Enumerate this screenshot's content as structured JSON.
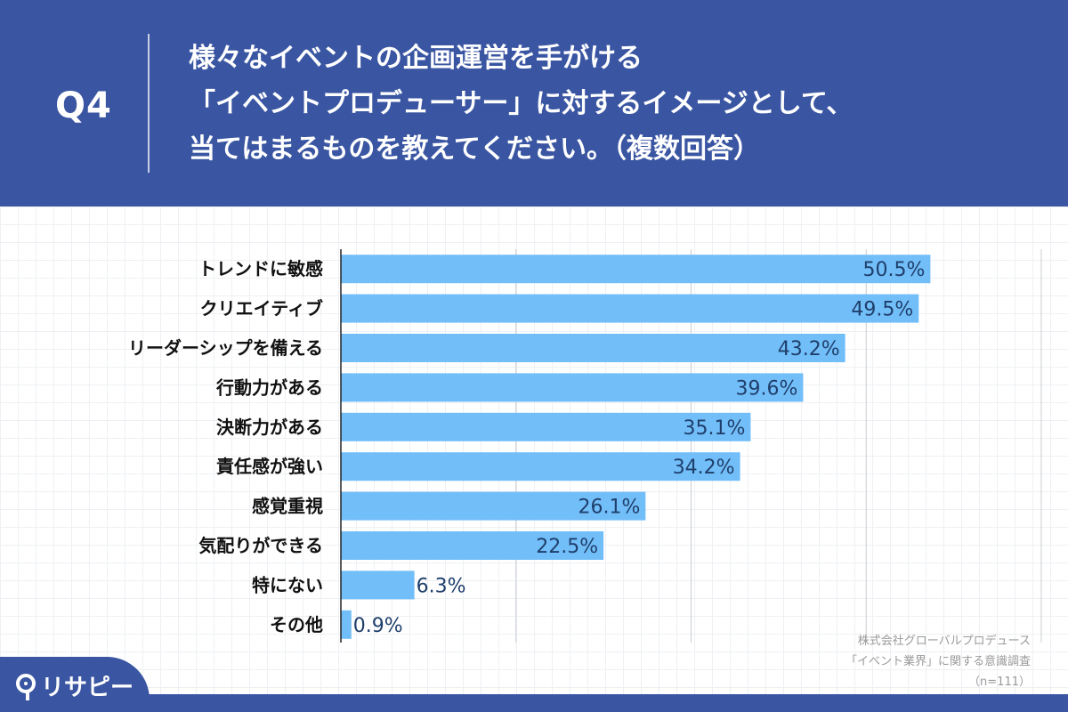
{
  "header": {
    "q_label": "Q4",
    "question_lines": [
      "様々なイベントの企画運営を手がける",
      "「イベントプロデューサー」に対するイメージとして、",
      "当てはまるものを教えてください。（複数回答）"
    ]
  },
  "chart_data": {
    "type": "bar",
    "orientation": "horizontal",
    "categories": [
      "トレンドに敏感",
      "クリエイティブ",
      "リーダーシップを備える",
      "行動力がある",
      "決断力がある",
      "責任感が強い",
      "感覚重視",
      "気配りができる",
      "特にない",
      "その他"
    ],
    "values": [
      50.5,
      49.5,
      43.2,
      39.6,
      35.1,
      34.2,
      26.1,
      22.5,
      6.3,
      0.9
    ],
    "value_suffix": "%",
    "xlim": [
      0,
      60
    ],
    "grid": true,
    "bar_color": "#72bef9",
    "label_color": "#1f3f6b"
  },
  "source": {
    "lines": [
      "株式会社グローバルプロデュース",
      "「イベント業界」に関する意識調査",
      "（n=111）"
    ]
  },
  "logo": {
    "text": "リサピー"
  },
  "colors": {
    "background": "#3a56a2",
    "panel": "#ffffff"
  }
}
